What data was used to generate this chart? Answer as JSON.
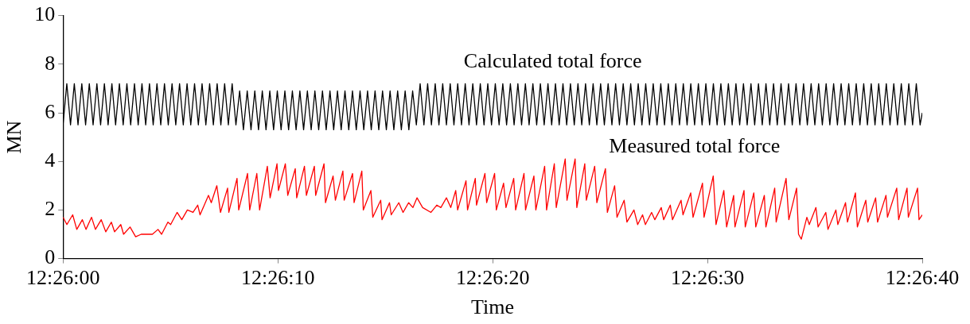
{
  "chart_data": {
    "type": "line",
    "xlabel": "Time",
    "ylabel": "MN",
    "marker": "none",
    "xlim": [
      12.433333,
      12.444444
    ],
    "xticks": [
      {
        "value": 12.433333,
        "label": "12:26:00"
      },
      {
        "value": 12.436111,
        "label": "12:26:10"
      },
      {
        "value": 12.438889,
        "label": "12:26:20"
      },
      {
        "value": 12.441667,
        "label": "12:26:30"
      },
      {
        "value": 12.444444,
        "label": "12:26:40"
      }
    ],
    "ylim": [
      0,
      10
    ],
    "yticks": [
      0,
      2,
      4,
      6,
      8,
      10
    ],
    "series": [
      {
        "name": "Calculated total force",
        "color": "#000000",
        "x": [
          12.433333,
          12.433382,
          12.43343,
          12.433479,
          12.433527,
          12.433576,
          12.433625,
          12.433673,
          12.433722,
          12.433771,
          12.433819,
          12.433868,
          12.433916,
          12.433965,
          12.434013,
          12.434062,
          12.434111,
          12.434159,
          12.434208,
          12.434257,
          12.434305,
          12.434354,
          12.434402,
          12.434451,
          12.434499,
          12.434548,
          12.434597,
          12.434645,
          12.434694,
          12.434743,
          12.434791,
          12.43484,
          12.434888,
          12.434937,
          12.434985,
          12.435034,
          12.435083,
          12.435131,
          12.43518,
          12.435229,
          12.435277,
          12.435326,
          12.435374,
          12.435423,
          12.435471,
          12.43552,
          12.435569,
          12.435617,
          12.435666,
          12.435715,
          12.435764,
          12.435813,
          12.435861,
          12.43591,
          12.435958,
          12.436007,
          12.436056,
          12.436104,
          12.436153,
          12.436202,
          12.43625,
          12.436299,
          12.436347,
          12.436396,
          12.436444,
          12.436493,
          12.436542,
          12.43659,
          12.436639,
          12.436688,
          12.436736,
          12.436785,
          12.436833,
          12.436882,
          12.43693,
          12.436979,
          12.437028,
          12.437076,
          12.437125,
          12.437174,
          12.437222,
          12.437271,
          12.437319,
          12.437368,
          12.437416,
          12.437465,
          12.437514,
          12.437562,
          12.437611,
          12.43766,
          12.437708,
          12.437757,
          12.437805,
          12.437854,
          12.437902,
          12.437951,
          12.438,
          12.438048,
          12.438097,
          12.438146,
          12.438194,
          12.438243,
          12.438291,
          12.43834,
          12.438388,
          12.438437,
          12.438486,
          12.438534,
          12.438583,
          12.438632,
          12.43868,
          12.438729,
          12.438777,
          12.438826,
          12.438874,
          12.438923,
          12.438972,
          12.43902,
          12.439069,
          12.439118,
          12.439166,
          12.439215,
          12.439263,
          12.439312,
          12.43936,
          12.439409,
          12.439458,
          12.439506,
          12.439555,
          12.439604,
          12.439652,
          12.439701,
          12.439749,
          12.439798,
          12.439846,
          12.439895,
          12.439944,
          12.439992,
          12.440041,
          12.44009,
          12.440139,
          12.440188,
          12.440236,
          12.440285,
          12.440333,
          12.440382,
          12.440431,
          12.440479,
          12.440528,
          12.440577,
          12.440625,
          12.440674,
          12.440722,
          12.440771,
          12.440819,
          12.440868,
          12.440917,
          12.440965,
          12.441014,
          12.441063,
          12.441111,
          12.44116,
          12.441208,
          12.441257,
          12.441305,
          12.441354,
          12.441403,
          12.441451,
          12.4415,
          12.441549,
          12.441597,
          12.441646,
          12.441694,
          12.441743,
          12.441791,
          12.44184,
          12.441889,
          12.441937,
          12.441986,
          12.442035,
          12.442083,
          12.442132,
          12.44218,
          12.442229,
          12.442277,
          12.442326,
          12.442375,
          12.442423,
          12.442472,
          12.442521,
          12.442569,
          12.442618,
          12.442666,
          12.442715,
          12.442763,
          12.442812,
          12.442861,
          12.442909,
          12.442958,
          12.443007,
          12.443055,
          12.443104,
          12.443152,
          12.443201,
          12.443249,
          12.443298,
          12.443347,
          12.443395,
          12.443444,
          12.443493,
          12.443541,
          12.44359,
          12.443638,
          12.443687,
          12.443735,
          12.443784,
          12.443833,
          12.443881,
          12.44393,
          12.443979,
          12.444027,
          12.444076,
          12.444124,
          12.444173,
          12.444221,
          12.44427,
          12.444319,
          12.444367,
          12.444416,
          12.444444
        ],
        "values": [
          5.5,
          7.2,
          5.5,
          7.2,
          5.5,
          7.2,
          5.5,
          7.2,
          5.5,
          7.2,
          5.5,
          7.2,
          5.5,
          7.2,
          5.5,
          7.2,
          5.5,
          7.2,
          5.5,
          7.2,
          5.5,
          7.2,
          5.5,
          7.2,
          5.5,
          7.2,
          5.5,
          7.2,
          5.5,
          7.2,
          5.5,
          7.2,
          5.5,
          7.2,
          5.5,
          7.2,
          5.5,
          7.2,
          5.5,
          7.2,
          5.5,
          7.2,
          5.5,
          7.2,
          5.5,
          7.2,
          5.5,
          6.9,
          5.3,
          6.9,
          5.3,
          6.9,
          5.3,
          6.9,
          5.3,
          6.9,
          5.3,
          6.9,
          5.3,
          6.9,
          5.3,
          6.9,
          5.3,
          6.9,
          5.3,
          6.9,
          5.3,
          6.9,
          5.3,
          6.9,
          5.3,
          6.9,
          5.3,
          6.9,
          5.3,
          6.9,
          5.3,
          6.9,
          5.3,
          6.9,
          5.3,
          6.9,
          5.3,
          6.9,
          5.3,
          6.9,
          5.3,
          6.9,
          5.3,
          6.9,
          5.3,
          6.9,
          5.3,
          6.9,
          5.5,
          7.2,
          5.5,
          7.2,
          5.5,
          7.2,
          5.5,
          7.2,
          5.5,
          7.2,
          5.5,
          7.2,
          5.5,
          7.2,
          5.5,
          7.2,
          5.5,
          7.2,
          5.5,
          7.2,
          5.5,
          7.2,
          5.5,
          7.2,
          5.5,
          7.2,
          5.5,
          7.2,
          5.5,
          7.2,
          5.5,
          7.2,
          5.5,
          7.2,
          5.5,
          7.2,
          5.5,
          7.2,
          5.5,
          7.2,
          5.5,
          7.2,
          5.5,
          7.2,
          5.5,
          7.2,
          5.5,
          7.2,
          5.5,
          7.2,
          5.5,
          7.2,
          5.5,
          7.2,
          5.5,
          7.2,
          5.5,
          7.2,
          5.5,
          7.2,
          5.5,
          7.2,
          5.5,
          7.2,
          5.5,
          7.2,
          5.5,
          7.2,
          5.5,
          7.2,
          5.5,
          7.2,
          5.5,
          7.2,
          5.5,
          7.2,
          5.5,
          7.2,
          5.5,
          7.2,
          5.5,
          7.2,
          5.5,
          7.2,
          5.5,
          7.2,
          5.5,
          7.2,
          5.5,
          7.2,
          5.5,
          7.2,
          5.5,
          7.2,
          5.5,
          7.2,
          5.5,
          7.2,
          5.5,
          7.2,
          5.5,
          7.2,
          5.5,
          7.2,
          5.5,
          7.2,
          5.5,
          7.2,
          5.5,
          7.2,
          5.5,
          7.2,
          5.5,
          7.2,
          5.5,
          7.2,
          5.5,
          7.2,
          5.5,
          7.2,
          5.5,
          7.2,
          5.5,
          7.2,
          5.5,
          7.2,
          5.5,
          7.2,
          5.5,
          7.2,
          5.5,
          7.2,
          5.5,
          7.2,
          5.5,
          6.0
        ]
      },
      {
        "name": "Measured total force",
        "color": "#ff0000",
        "x": [
          12.433333,
          12.433383,
          12.433458,
          12.433511,
          12.433583,
          12.43363,
          12.433702,
          12.433752,
          12.433827,
          12.433886,
          12.433958,
          12.434,
          12.43408,
          12.434116,
          12.4342,
          12.434272,
          12.434344,
          12.4344,
          12.434489,
          12.434561,
          12.434608,
          12.434689,
          12.434725,
          12.434808,
          12.434869,
          12.434941,
          12.435014,
          12.435075,
          12.435105,
          12.435214,
          12.43525,
          12.435322,
          12.435369,
          12.435461,
          12.435477,
          12.435583,
          12.435605,
          12.435719,
          12.435747,
          12.435839,
          12.435875,
          12.435975,
          12.436011,
          12.4361,
          12.436119,
          12.436208,
          12.436239,
          12.436336,
          12.436355,
          12.436455,
          12.43648,
          12.436583,
          12.4366,
          12.436708,
          12.436727,
          12.436825,
          12.436855,
          12.436952,
          12.436969,
          12.437077,
          12.437097,
          12.437197,
          12.437216,
          12.437314,
          12.437339,
          12.437441,
          12.437458,
          12.437555,
          12.437577,
          12.437675,
          12.43773,
          12.437802,
          12.437858,
          12.437911,
          12.437983,
          12.438091,
          12.438166,
          12.438219,
          12.438291,
          12.438347,
          12.438411,
          12.438436,
          12.438544,
          12.438564,
          12.438664,
          12.43868,
          12.438789,
          12.438811,
          12.438914,
          12.438936,
          12.43903,
          12.439061,
          12.439161,
          12.439186,
          12.439294,
          12.439314,
          12.439422,
          12.439447,
          12.439561,
          12.439586,
          12.439686,
          12.439711,
          12.439827,
          12.43985,
          12.439955,
          12.439977,
          12.44008,
          12.4401,
          12.440208,
          12.440236,
          12.440347,
          12.440372,
          12.440466,
          12.440497,
          12.440589,
          12.440625,
          12.440716,
          12.440764,
          12.440827,
          12.440864,
          12.440944,
          12.440986,
          12.441069,
          12.4411,
          12.441186,
          12.441214,
          12.441325,
          12.44135,
          12.44145,
          12.44148,
          12.441602,
          12.441622,
          12.441741,
          12.441777,
          12.441878,
          12.441914,
          12.442005,
          12.442022,
          12.442139,
          12.442155,
          12.442266,
          12.442291,
          12.442402,
          12.442422,
          12.442536,
          12.442555,
          12.442683,
          12.442719,
          12.442819,
          12.442844,
          12.44288,
          12.442952,
          12.442983,
          12.443069,
          12.443097,
          12.443197,
          12.443225,
          12.443327,
          12.443352,
          12.443452,
          12.443477,
          12.44358,
          12.443605,
          12.443714,
          12.443739,
          12.443841,
          12.443866,
          12.443975,
          12.443994,
          12.444114,
          12.444139,
          12.444247,
          12.444264,
          12.444383,
          12.444402,
          12.444444
        ],
        "values": [
          1.7,
          1.4,
          1.8,
          1.2,
          1.6,
          1.2,
          1.7,
          1.2,
          1.6,
          1.1,
          1.5,
          1.1,
          1.4,
          1.0,
          1.3,
          0.9,
          1.0,
          1.0,
          1.0,
          1.2,
          1.0,
          1.5,
          1.4,
          1.9,
          1.6,
          2.0,
          1.9,
          2.2,
          1.8,
          2.6,
          2.3,
          3.0,
          1.9,
          2.9,
          1.9,
          3.3,
          2.0,
          3.5,
          2.0,
          3.5,
          2.0,
          3.8,
          2.5,
          3.9,
          2.8,
          3.9,
          2.6,
          3.7,
          2.5,
          3.8,
          2.6,
          3.8,
          2.6,
          3.9,
          2.3,
          3.4,
          2.4,
          3.6,
          2.4,
          3.5,
          2.3,
          3.6,
          2.0,
          2.8,
          1.7,
          2.4,
          1.6,
          2.3,
          1.8,
          2.3,
          1.9,
          2.3,
          2.1,
          2.5,
          2.1,
          1.9,
          2.2,
          2.1,
          2.5,
          2.1,
          2.8,
          2.0,
          3.2,
          2.0,
          3.3,
          2.2,
          3.5,
          2.3,
          3.5,
          2.0,
          3.1,
          2.1,
          3.3,
          2.0,
          3.5,
          2.0,
          3.4,
          2.0,
          3.8,
          2.0,
          3.9,
          2.1,
          4.1,
          2.4,
          4.1,
          2.1,
          3.9,
          2.4,
          3.8,
          2.3,
          3.7,
          1.9,
          3.0,
          1.7,
          2.4,
          1.5,
          2.0,
          1.4,
          1.8,
          1.4,
          1.9,
          1.6,
          2.1,
          1.6,
          2.2,
          1.6,
          2.4,
          1.8,
          2.7,
          1.7,
          3.1,
          1.7,
          3.4,
          1.4,
          2.8,
          1.3,
          2.6,
          1.3,
          2.8,
          1.3,
          2.7,
          1.3,
          2.6,
          1.3,
          2.9,
          1.5,
          3.3,
          1.6,
          2.9,
          1.0,
          0.8,
          1.7,
          1.4,
          2.1,
          1.3,
          1.9,
          1.2,
          2.0,
          1.4,
          2.3,
          1.5,
          2.7,
          1.3,
          2.4,
          1.5,
          2.5,
          1.5,
          2.6,
          1.7,
          2.9,
          1.6,
          2.9,
          1.7,
          2.9,
          1.6,
          1.8
        ]
      }
    ]
  }
}
